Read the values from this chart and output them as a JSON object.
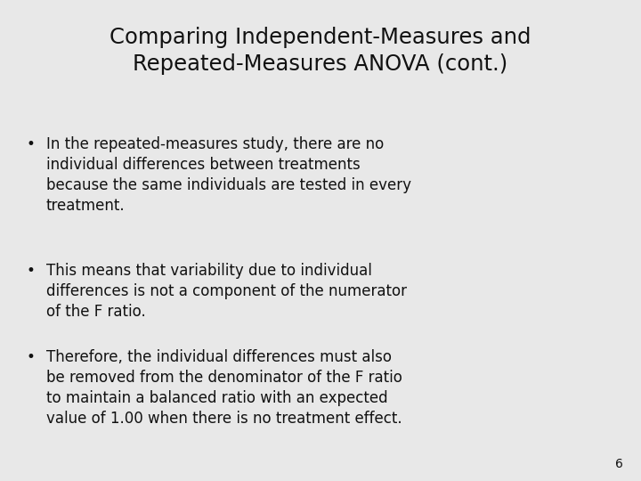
{
  "title_line1": "Comparing Independent-Measures and",
  "title_line2": "Repeated-Measures ANOVA (cont.)",
  "bullet1": "In the repeated-measures study, there are no\nindividual differences between treatments\nbecause the same individuals are tested in every\ntreatment.",
  "bullet2": "This means that variability due to individual\ndifferences is not a component of the numerator\nof the F ratio.",
  "bullet3": "Therefore, the individual differences must also\nbe removed from the denominator of the F ratio\nto maintain a balanced ratio with an expected\nvalue of 1.00 when there is no treatment effect.",
  "page_number": "6",
  "bg_color": "#e8e8e8",
  "title_color": "#111111",
  "text_color": "#111111",
  "title_fontsize": 17.5,
  "body_fontsize": 12.0,
  "page_fontsize": 10.0
}
